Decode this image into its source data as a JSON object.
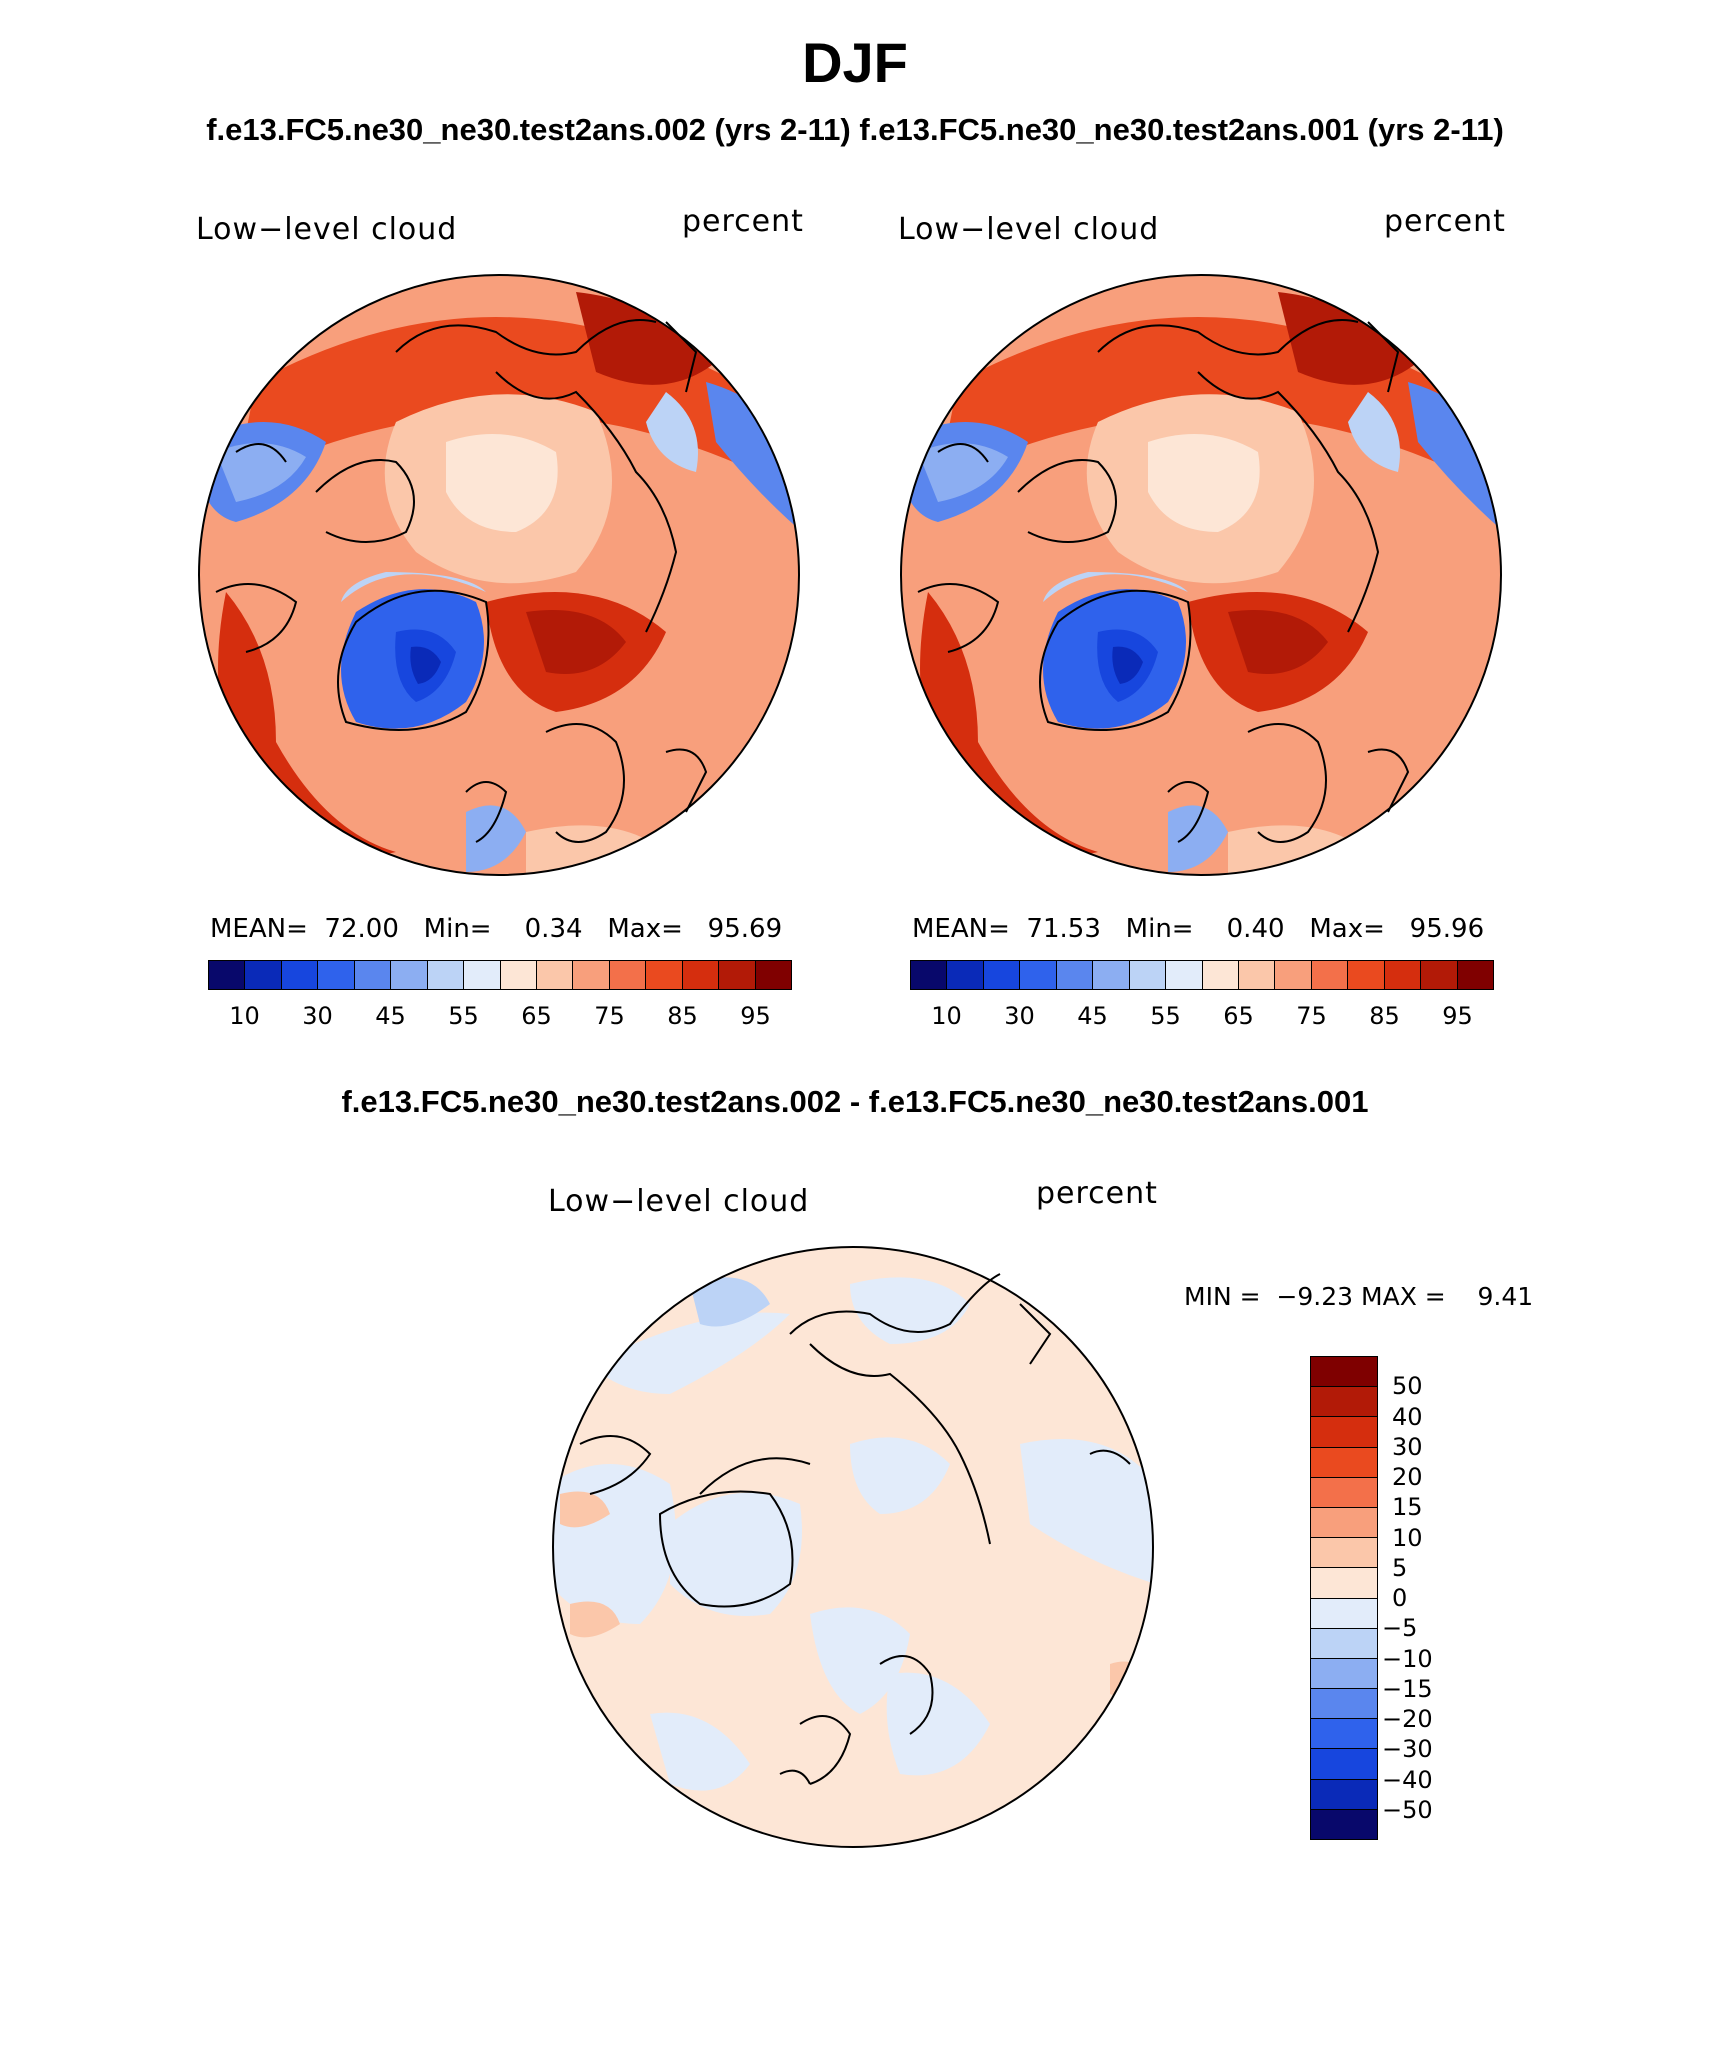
{
  "title": "DJF",
  "cases": {
    "left": "f.e13.FC5.ne30_ne30.test2ans.002 (yrs 2-11)",
    "right": "f.e13.FC5.ne30_ne30.test2ans.001 (yrs 2-11)",
    "diff": "f.e13.FC5.ne30_ne30.test2ans.002 - f.e13.FC5.ne30_ne30.test2ans.001"
  },
  "panels": [
    {
      "variable": "Low−level cloud",
      "units": "percent",
      "stats": {
        "mean_label": "MEAN=",
        "mean": "72.00",
        "min_label": "Min=",
        "min": "0.34",
        "max_label": "Max=",
        "max": "95.69"
      }
    },
    {
      "variable": "Low−level cloud",
      "units": "percent",
      "stats": {
        "mean_label": "MEAN=",
        "mean": "71.53",
        "min_label": "Min=",
        "min": "0.40",
        "max_label": "Max=",
        "max": "95.96"
      }
    }
  ],
  "diff_panel": {
    "variable": "Low−level cloud",
    "units": "percent",
    "min_label": "MIN =",
    "min": "−9.23",
    "max_label": "MAX =",
    "max": "9.41"
  },
  "colorbar": {
    "labels": [
      "10",
      "30",
      "45",
      "55",
      "65",
      "75",
      "85",
      "95"
    ],
    "colors": [
      "#08086b",
      "#0a2ab8",
      "#1746de",
      "#2f62ec",
      "#5a86ee",
      "#8caef2",
      "#bcd3f6",
      "#e2ecfa",
      "#fde6d6",
      "#fbc7aa",
      "#f89f7c",
      "#f3704a",
      "#ea4a1f",
      "#d52e0e",
      "#b21a07",
      "#800000"
    ]
  },
  "diff_colorbar": {
    "labels": [
      "50",
      "40",
      "30",
      "20",
      "15",
      "10",
      "5",
      "0",
      "−5",
      "−10",
      "−15",
      "−20",
      "−30",
      "−40",
      "−50"
    ],
    "colors": [
      "#7f0000",
      "#b21a07",
      "#d52e0e",
      "#ea4a1f",
      "#f3704a",
      "#f89f7c",
      "#fbc7aa",
      "#fde6d6",
      "#e2ecfa",
      "#bcd3f6",
      "#8caef2",
      "#5a86ee",
      "#2f62ec",
      "#1746de",
      "#0a2ab8",
      "#08086b"
    ]
  }
}
